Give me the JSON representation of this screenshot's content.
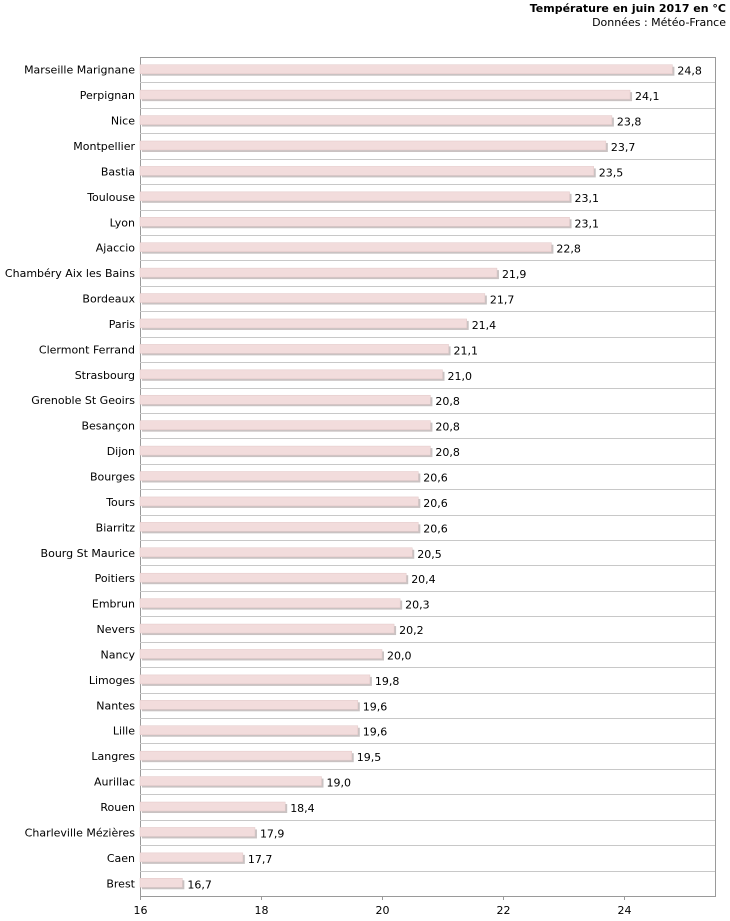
{
  "chart_data": {
    "type": "bar",
    "orientation": "horizontal",
    "title": "Température en juin 2017 en °C",
    "subtitle": "Données : Météo-France",
    "xlim": [
      16,
      25.8
    ],
    "xticks": [
      "16",
      "18",
      "20",
      "22",
      "24"
    ],
    "tick_values": [
      16,
      18,
      20,
      22,
      24
    ],
    "grid": "horizontal row separators",
    "bar_color": "#f2dcdc",
    "categories": [
      "Marseille Marignane",
      "Perpignan",
      "Nice",
      "Montpellier",
      "Bastia",
      "Toulouse",
      "Lyon",
      "Ajaccio",
      "Chambéry Aix les Bains",
      "Bordeaux",
      "Paris",
      "Clermont Ferrand",
      "Strasbourg",
      "Grenoble St Geoirs",
      "Besançon",
      "Dijon",
      "Bourges",
      "Tours",
      "Biarritz",
      "Bourg St Maurice",
      "Poitiers",
      "Embrun",
      "Nevers",
      "Nancy",
      "Limoges",
      "Nantes",
      "Lille",
      "Langres",
      "Aurillac",
      "Rouen",
      "Charleville Mézières",
      "Caen",
      "Brest"
    ],
    "values": [
      24.8,
      24.1,
      23.8,
      23.7,
      23.5,
      23.1,
      23.1,
      22.8,
      21.9,
      21.7,
      21.4,
      21.1,
      21.0,
      20.8,
      20.8,
      20.8,
      20.6,
      20.6,
      20.6,
      20.5,
      20.4,
      20.3,
      20.2,
      20.0,
      19.8,
      19.6,
      19.6,
      19.5,
      19.0,
      18.4,
      17.9,
      17.7,
      16.7
    ],
    "value_labels": [
      "24,8",
      "24,1",
      "23,8",
      "23,7",
      "23,5",
      "23,1",
      "23,1",
      "22,8",
      "21,9",
      "21,7",
      "21,4",
      "21,1",
      "21,0",
      "20,8",
      "20,8",
      "20,8",
      "20,6",
      "20,6",
      "20,6",
      "20,5",
      "20,4",
      "20,3",
      "20,2",
      "20,0",
      "19,8",
      "19,6",
      "19,6",
      "19,5",
      "19,0",
      "18,4",
      "17,9",
      "17,7",
      "16,7"
    ]
  }
}
